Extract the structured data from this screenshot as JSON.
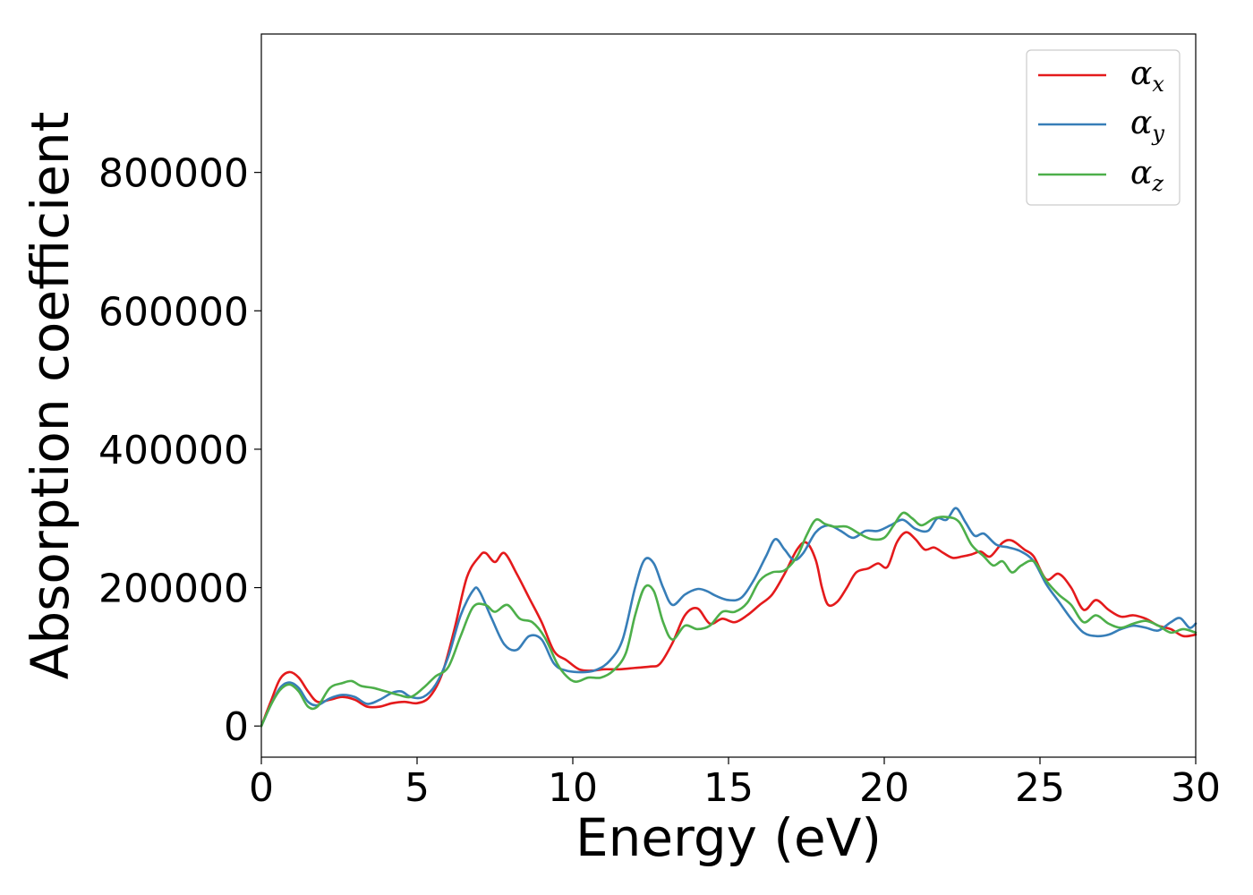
{
  "colors": {
    "alpha_x": "#e41a1c",
    "alpha_y": "#377eb8",
    "alpha_z": "#4daf4a",
    "axis": "#000000",
    "legend_border": "#cccccc"
  },
  "chart_data": {
    "type": "line",
    "title": "",
    "xlabel": "Energy (eV)",
    "ylabel": "Absorption coefficient",
    "xlim": [
      0,
      30
    ],
    "ylim": [
      -45000,
      1000000
    ],
    "xticks": [
      0,
      5,
      10,
      15,
      20,
      25,
      30
    ],
    "xtick_labels": [
      "0",
      "5",
      "10",
      "15",
      "20",
      "25",
      "30"
    ],
    "yticks": [
      0,
      200000,
      400000,
      600000,
      800000
    ],
    "ytick_labels": [
      "0",
      "200000",
      "400000",
      "600000",
      "800000"
    ],
    "grid": false,
    "legend_position": "top-right",
    "series": [
      {
        "name": "αx",
        "symbol": "α",
        "subscript": "x",
        "color": "#e41a1c",
        "points": [
          [
            0.0,
            0
          ],
          [
            0.3,
            35000
          ],
          [
            0.6,
            68000
          ],
          [
            0.9,
            78000
          ],
          [
            1.2,
            70000
          ],
          [
            1.5,
            50000
          ],
          [
            1.8,
            35000
          ],
          [
            2.2,
            38000
          ],
          [
            2.6,
            42000
          ],
          [
            3.0,
            38000
          ],
          [
            3.4,
            28000
          ],
          [
            3.8,
            28000
          ],
          [
            4.2,
            33000
          ],
          [
            4.6,
            35000
          ],
          [
            5.0,
            33000
          ],
          [
            5.4,
            42000
          ],
          [
            5.8,
            75000
          ],
          [
            6.2,
            140000
          ],
          [
            6.6,
            215000
          ],
          [
            7.0,
            245000
          ],
          [
            7.2,
            250000
          ],
          [
            7.5,
            237000
          ],
          [
            7.8,
            250000
          ],
          [
            8.2,
            220000
          ],
          [
            8.6,
            185000
          ],
          [
            9.0,
            150000
          ],
          [
            9.4,
            108000
          ],
          [
            9.8,
            95000
          ],
          [
            10.2,
            82000
          ],
          [
            10.6,
            80000
          ],
          [
            11.0,
            82000
          ],
          [
            11.5,
            82000
          ],
          [
            12.0,
            84000
          ],
          [
            12.5,
            86000
          ],
          [
            12.8,
            90000
          ],
          [
            13.2,
            120000
          ],
          [
            13.6,
            160000
          ],
          [
            14.0,
            170000
          ],
          [
            14.4,
            148000
          ],
          [
            14.8,
            155000
          ],
          [
            15.2,
            150000
          ],
          [
            15.6,
            160000
          ],
          [
            16.0,
            175000
          ],
          [
            16.4,
            190000
          ],
          [
            16.8,
            220000
          ],
          [
            17.2,
            255000
          ],
          [
            17.5,
            265000
          ],
          [
            17.8,
            240000
          ],
          [
            18.0,
            200000
          ],
          [
            18.2,
            175000
          ],
          [
            18.5,
            180000
          ],
          [
            18.8,
            200000
          ],
          [
            19.1,
            222000
          ],
          [
            19.5,
            228000
          ],
          [
            19.8,
            235000
          ],
          [
            20.1,
            230000
          ],
          [
            20.4,
            265000
          ],
          [
            20.7,
            280000
          ],
          [
            21.0,
            270000
          ],
          [
            21.3,
            255000
          ],
          [
            21.6,
            258000
          ],
          [
            21.9,
            250000
          ],
          [
            22.2,
            243000
          ],
          [
            22.5,
            245000
          ],
          [
            22.8,
            248000
          ],
          [
            23.1,
            252000
          ],
          [
            23.4,
            245000
          ],
          [
            23.8,
            265000
          ],
          [
            24.1,
            268000
          ],
          [
            24.5,
            255000
          ],
          [
            24.8,
            245000
          ],
          [
            25.2,
            212000
          ],
          [
            25.6,
            220000
          ],
          [
            26.0,
            200000
          ],
          [
            26.4,
            168000
          ],
          [
            26.8,
            182000
          ],
          [
            27.2,
            168000
          ],
          [
            27.6,
            158000
          ],
          [
            28.0,
            160000
          ],
          [
            28.4,
            155000
          ],
          [
            28.8,
            145000
          ],
          [
            29.2,
            140000
          ],
          [
            29.6,
            130000
          ],
          [
            30.0,
            132000
          ]
        ]
      },
      {
        "name": "αy",
        "symbol": "α",
        "subscript": "y",
        "color": "#377eb8",
        "points": [
          [
            0.0,
            0
          ],
          [
            0.3,
            30000
          ],
          [
            0.6,
            55000
          ],
          [
            0.9,
            63000
          ],
          [
            1.2,
            55000
          ],
          [
            1.5,
            35000
          ],
          [
            1.8,
            30000
          ],
          [
            2.2,
            40000
          ],
          [
            2.6,
            45000
          ],
          [
            3.0,
            42000
          ],
          [
            3.4,
            32000
          ],
          [
            3.8,
            38000
          ],
          [
            4.2,
            48000
          ],
          [
            4.5,
            50000
          ],
          [
            4.8,
            42000
          ],
          [
            5.2,
            42000
          ],
          [
            5.6,
            60000
          ],
          [
            6.0,
            100000
          ],
          [
            6.4,
            160000
          ],
          [
            6.8,
            196000
          ],
          [
            7.0,
            195000
          ],
          [
            7.4,
            155000
          ],
          [
            7.8,
            118000
          ],
          [
            8.2,
            110000
          ],
          [
            8.6,
            130000
          ],
          [
            9.0,
            125000
          ],
          [
            9.4,
            90000
          ],
          [
            9.8,
            80000
          ],
          [
            10.4,
            78000
          ],
          [
            10.8,
            82000
          ],
          [
            11.2,
            95000
          ],
          [
            11.6,
            125000
          ],
          [
            12.0,
            200000
          ],
          [
            12.3,
            240000
          ],
          [
            12.6,
            235000
          ],
          [
            12.9,
            200000
          ],
          [
            13.2,
            175000
          ],
          [
            13.6,
            190000
          ],
          [
            14.0,
            198000
          ],
          [
            14.3,
            195000
          ],
          [
            14.6,
            188000
          ],
          [
            15.0,
            182000
          ],
          [
            15.4,
            185000
          ],
          [
            15.8,
            210000
          ],
          [
            16.2,
            245000
          ],
          [
            16.5,
            270000
          ],
          [
            16.8,
            255000
          ],
          [
            17.1,
            240000
          ],
          [
            17.4,
            250000
          ],
          [
            17.8,
            280000
          ],
          [
            18.2,
            290000
          ],
          [
            18.6,
            282000
          ],
          [
            19.0,
            272000
          ],
          [
            19.4,
            282000
          ],
          [
            19.8,
            282000
          ],
          [
            20.2,
            290000
          ],
          [
            20.6,
            298000
          ],
          [
            21.0,
            285000
          ],
          [
            21.4,
            282000
          ],
          [
            21.7,
            300000
          ],
          [
            22.0,
            298000
          ],
          [
            22.3,
            315000
          ],
          [
            22.6,
            295000
          ],
          [
            22.9,
            275000
          ],
          [
            23.2,
            278000
          ],
          [
            23.6,
            262000
          ],
          [
            24.0,
            258000
          ],
          [
            24.4,
            252000
          ],
          [
            24.8,
            238000
          ],
          [
            25.2,
            205000
          ],
          [
            25.6,
            180000
          ],
          [
            26.0,
            155000
          ],
          [
            26.4,
            135000
          ],
          [
            26.8,
            130000
          ],
          [
            27.2,
            132000
          ],
          [
            27.6,
            140000
          ],
          [
            28.0,
            145000
          ],
          [
            28.4,
            142000
          ],
          [
            28.8,
            138000
          ],
          [
            29.2,
            150000
          ],
          [
            29.5,
            156000
          ],
          [
            29.8,
            142000
          ],
          [
            30.0,
            148000
          ]
        ]
      },
      {
        "name": "αz",
        "symbol": "α",
        "subscript": "z",
        "color": "#4daf4a",
        "points": [
          [
            0.0,
            0
          ],
          [
            0.3,
            30000
          ],
          [
            0.6,
            52000
          ],
          [
            0.9,
            60000
          ],
          [
            1.2,
            50000
          ],
          [
            1.5,
            28000
          ],
          [
            1.8,
            28000
          ],
          [
            2.2,
            55000
          ],
          [
            2.6,
            62000
          ],
          [
            2.9,
            65000
          ],
          [
            3.2,
            58000
          ],
          [
            3.6,
            55000
          ],
          [
            4.0,
            50000
          ],
          [
            4.4,
            45000
          ],
          [
            4.8,
            42000
          ],
          [
            5.2,
            55000
          ],
          [
            5.6,
            72000
          ],
          [
            6.0,
            85000
          ],
          [
            6.4,
            130000
          ],
          [
            6.8,
            172000
          ],
          [
            7.2,
            175000
          ],
          [
            7.5,
            165000
          ],
          [
            7.9,
            175000
          ],
          [
            8.3,
            155000
          ],
          [
            8.7,
            150000
          ],
          [
            9.1,
            128000
          ],
          [
            9.5,
            90000
          ],
          [
            9.8,
            72000
          ],
          [
            10.1,
            64000
          ],
          [
            10.5,
            70000
          ],
          [
            10.9,
            70000
          ],
          [
            11.3,
            80000
          ],
          [
            11.7,
            105000
          ],
          [
            12.0,
            160000
          ],
          [
            12.3,
            200000
          ],
          [
            12.6,
            195000
          ],
          [
            12.9,
            150000
          ],
          [
            13.2,
            125000
          ],
          [
            13.6,
            145000
          ],
          [
            14.0,
            140000
          ],
          [
            14.4,
            145000
          ],
          [
            14.8,
            165000
          ],
          [
            15.2,
            165000
          ],
          [
            15.6,
            178000
          ],
          [
            16.0,
            210000
          ],
          [
            16.4,
            222000
          ],
          [
            16.8,
            225000
          ],
          [
            17.2,
            245000
          ],
          [
            17.5,
            275000
          ],
          [
            17.8,
            298000
          ],
          [
            18.1,
            292000
          ],
          [
            18.4,
            288000
          ],
          [
            18.8,
            288000
          ],
          [
            19.2,
            278000
          ],
          [
            19.6,
            270000
          ],
          [
            20.0,
            272000
          ],
          [
            20.3,
            290000
          ],
          [
            20.6,
            308000
          ],
          [
            20.9,
            300000
          ],
          [
            21.2,
            290000
          ],
          [
            21.6,
            300000
          ],
          [
            22.0,
            302000
          ],
          [
            22.4,
            295000
          ],
          [
            22.8,
            262000
          ],
          [
            23.2,
            245000
          ],
          [
            23.5,
            232000
          ],
          [
            23.8,
            238000
          ],
          [
            24.1,
            222000
          ],
          [
            24.4,
            232000
          ],
          [
            24.8,
            238000
          ],
          [
            25.2,
            210000
          ],
          [
            25.6,
            190000
          ],
          [
            26.0,
            175000
          ],
          [
            26.4,
            150000
          ],
          [
            26.8,
            160000
          ],
          [
            27.2,
            148000
          ],
          [
            27.6,
            142000
          ],
          [
            28.0,
            148000
          ],
          [
            28.4,
            152000
          ],
          [
            28.8,
            145000
          ],
          [
            29.2,
            135000
          ],
          [
            29.6,
            140000
          ],
          [
            30.0,
            135000
          ]
        ]
      }
    ]
  }
}
